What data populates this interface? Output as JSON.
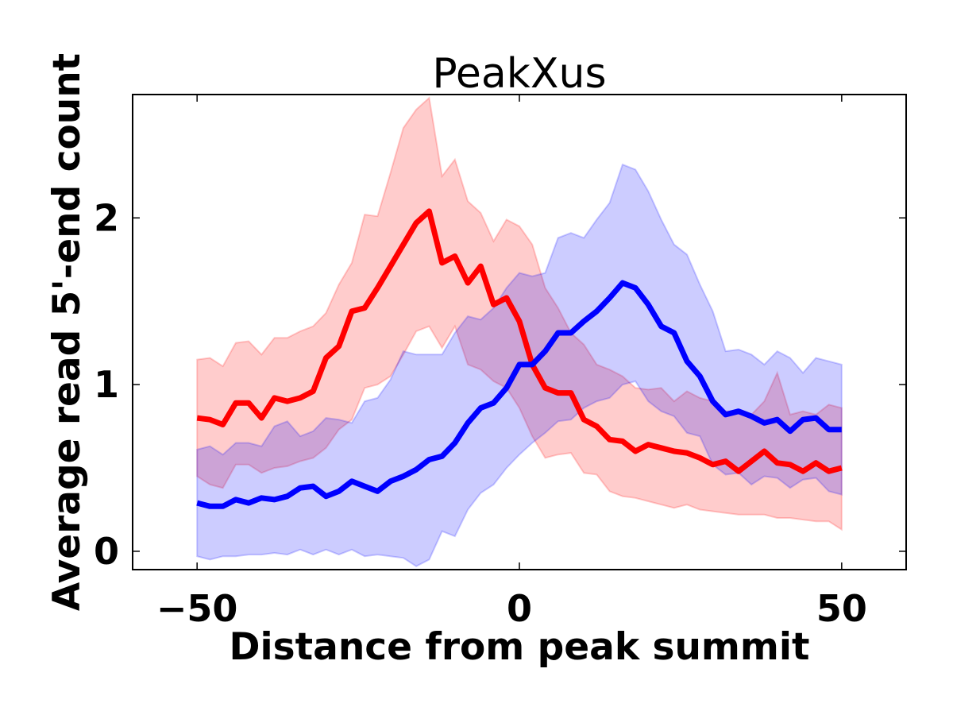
{
  "chart_data": {
    "type": "line",
    "title": "PeakXus",
    "xlabel": "Distance from peak summit",
    "ylabel": "Average read 5'-end count",
    "xlim": [
      -60,
      60
    ],
    "ylim": [
      -0.11,
      2.74
    ],
    "xticks": [
      -50,
      0,
      50
    ],
    "xtick_labels": [
      "−50",
      "0",
      "50"
    ],
    "yticks": [
      0,
      1,
      2
    ],
    "ytick_labels": [
      "0",
      "1",
      "2"
    ],
    "grid": false,
    "legend": "none",
    "x": [
      -50,
      -48,
      -46,
      -44,
      -42,
      -40,
      -38,
      -36,
      -34,
      -32,
      -30,
      -28,
      -26,
      -24,
      -22,
      -20,
      -18,
      -16,
      -14,
      -12,
      -10,
      -8,
      -6,
      -4,
      -2,
      0,
      2,
      4,
      6,
      8,
      10,
      12,
      14,
      16,
      18,
      20,
      22,
      24,
      26,
      28,
      30,
      32,
      34,
      36,
      38,
      40,
      42,
      44,
      46,
      48,
      50
    ],
    "series": [
      {
        "name": "red",
        "color": "#ff0000",
        "values": [
          0.8,
          0.79,
          0.76,
          0.89,
          0.89,
          0.8,
          0.92,
          0.9,
          0.92,
          0.96,
          1.16,
          1.23,
          1.44,
          1.46,
          1.58,
          1.71,
          1.84,
          1.97,
          2.04,
          1.73,
          1.77,
          1.61,
          1.71,
          1.48,
          1.52,
          1.38,
          1.12,
          0.98,
          0.95,
          0.95,
          0.79,
          0.75,
          0.67,
          0.66,
          0.6,
          0.64,
          0.62,
          0.6,
          0.59,
          0.56,
          0.52,
          0.54,
          0.48,
          0.54,
          0.6,
          0.53,
          0.52,
          0.48,
          0.53,
          0.48,
          0.5
        ],
        "upper": [
          1.15,
          1.16,
          1.11,
          1.25,
          1.26,
          1.18,
          1.28,
          1.28,
          1.32,
          1.35,
          1.43,
          1.6,
          1.73,
          2.02,
          2.01,
          2.27,
          2.54,
          2.65,
          2.72,
          2.25,
          2.35,
          2.1,
          2.03,
          1.86,
          1.99,
          1.95,
          1.84,
          1.58,
          1.46,
          1.31,
          1.24,
          1.12,
          1.09,
          1.05,
          0.98,
          0.97,
          0.98,
          0.9,
          0.96,
          0.92,
          0.9,
          0.84,
          0.84,
          0.82,
          0.9,
          1.07,
          0.82,
          0.84,
          0.82,
          0.88,
          0.86
        ],
        "lower": [
          0.45,
          0.4,
          0.38,
          0.52,
          0.52,
          0.47,
          0.5,
          0.51,
          0.54,
          0.56,
          0.62,
          0.73,
          0.79,
          0.98,
          1.0,
          1.05,
          1.18,
          1.32,
          1.35,
          1.22,
          1.35,
          1.12,
          1.09,
          1.02,
          0.98,
          0.86,
          0.69,
          0.56,
          0.58,
          0.59,
          0.47,
          0.46,
          0.36,
          0.33,
          0.32,
          0.3,
          0.28,
          0.26,
          0.28,
          0.25,
          0.24,
          0.23,
          0.22,
          0.22,
          0.22,
          0.2,
          0.2,
          0.19,
          0.18,
          0.18,
          0.13
        ]
      },
      {
        "name": "blue",
        "color": "#0000ff",
        "values": [
          0.29,
          0.27,
          0.27,
          0.31,
          0.29,
          0.32,
          0.31,
          0.33,
          0.38,
          0.39,
          0.33,
          0.36,
          0.42,
          0.39,
          0.36,
          0.42,
          0.45,
          0.49,
          0.55,
          0.57,
          0.65,
          0.77,
          0.86,
          0.89,
          0.98,
          1.12,
          1.12,
          1.2,
          1.31,
          1.31,
          1.38,
          1.44,
          1.52,
          1.61,
          1.58,
          1.48,
          1.35,
          1.31,
          1.14,
          1.05,
          0.9,
          0.82,
          0.84,
          0.81,
          0.77,
          0.79,
          0.72,
          0.79,
          0.8,
          0.73,
          0.73
        ],
        "upper": [
          0.61,
          0.63,
          0.58,
          0.65,
          0.65,
          0.63,
          0.75,
          0.78,
          0.69,
          0.72,
          0.8,
          0.79,
          0.77,
          0.9,
          0.92,
          1.03,
          1.2,
          1.18,
          1.18,
          1.18,
          1.31,
          1.41,
          1.39,
          1.46,
          1.58,
          1.67,
          1.65,
          1.67,
          1.88,
          1.91,
          1.88,
          1.99,
          2.09,
          2.32,
          2.29,
          2.16,
          1.99,
          1.84,
          1.78,
          1.6,
          1.44,
          1.2,
          1.21,
          1.18,
          1.12,
          1.2,
          1.16,
          1.07,
          1.16,
          1.14,
          1.12
        ],
        "lower": [
          -0.03,
          -0.05,
          -0.03,
          -0.03,
          -0.02,
          -0.02,
          -0.01,
          -0.02,
          0.01,
          -0.02,
          0.01,
          -0.02,
          0.01,
          -0.03,
          -0.02,
          -0.03,
          -0.04,
          -0.09,
          -0.05,
          0.12,
          0.09,
          0.25,
          0.35,
          0.4,
          0.5,
          0.58,
          0.65,
          0.71,
          0.78,
          0.79,
          0.86,
          0.9,
          0.92,
          1.0,
          1.02,
          0.9,
          0.84,
          0.81,
          0.71,
          0.69,
          0.52,
          0.46,
          0.47,
          0.4,
          0.45,
          0.44,
          0.38,
          0.43,
          0.44,
          0.36,
          0.34
        ]
      }
    ]
  }
}
